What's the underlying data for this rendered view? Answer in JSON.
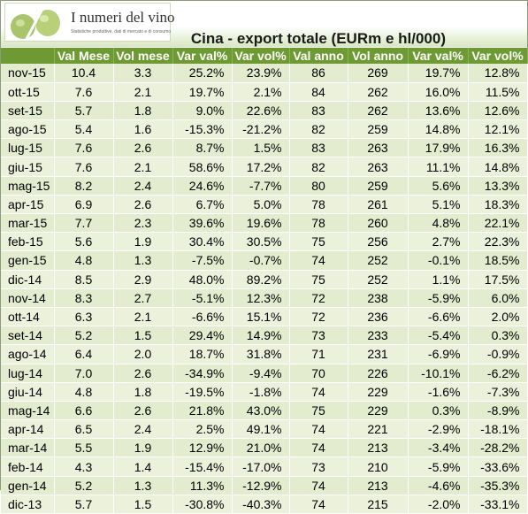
{
  "logo": {
    "title": "I numeri del vino",
    "subtitle": "Statistiche produttive, dati di mercato e di consumo"
  },
  "chart_data": {
    "type": "table",
    "title": "Cina - export totale (EURm e hl/000)",
    "columns": [
      "",
      "Val Mese",
      "Vol mese",
      "Var val%",
      "Var vol%",
      "Val anno",
      "Vol anno",
      "Var val%",
      "Var vol%"
    ],
    "rows": [
      [
        "nov-15",
        "10.4",
        "3.3",
        "25.2%",
        "23.9%",
        "86",
        "269",
        "19.7%",
        "12.8%"
      ],
      [
        "ott-15",
        "7.6",
        "2.1",
        "19.7%",
        "2.1%",
        "84",
        "262",
        "16.0%",
        "11.5%"
      ],
      [
        "set-15",
        "5.7",
        "1.8",
        "9.0%",
        "22.6%",
        "83",
        "262",
        "13.6%",
        "12.6%"
      ],
      [
        "ago-15",
        "5.4",
        "1.6",
        "-15.3%",
        "-21.2%",
        "82",
        "259",
        "14.8%",
        "12.1%"
      ],
      [
        "lug-15",
        "7.6",
        "2.6",
        "8.7%",
        "1.5%",
        "83",
        "263",
        "17.9%",
        "16.3%"
      ],
      [
        "giu-15",
        "7.6",
        "2.1",
        "58.6%",
        "17.2%",
        "82",
        "263",
        "11.1%",
        "14.8%"
      ],
      [
        "mag-15",
        "8.2",
        "2.4",
        "24.6%",
        "-7.7%",
        "80",
        "259",
        "5.6%",
        "13.3%"
      ],
      [
        "apr-15",
        "6.9",
        "2.6",
        "6.7%",
        "5.0%",
        "78",
        "261",
        "5.1%",
        "18.3%"
      ],
      [
        "mar-15",
        "7.7",
        "2.3",
        "39.6%",
        "19.6%",
        "78",
        "260",
        "4.8%",
        "22.1%"
      ],
      [
        "feb-15",
        "5.6",
        "1.9",
        "30.4%",
        "30.5%",
        "75",
        "256",
        "2.7%",
        "22.3%"
      ],
      [
        "gen-15",
        "4.8",
        "1.3",
        "-7.5%",
        "-0.7%",
        "74",
        "252",
        "-0.1%",
        "18.5%"
      ],
      [
        "dic-14",
        "8.5",
        "2.9",
        "48.0%",
        "89.2%",
        "75",
        "252",
        "1.1%",
        "17.5%"
      ],
      [
        "nov-14",
        "8.3",
        "2.7",
        "-5.1%",
        "12.3%",
        "72",
        "238",
        "-5.9%",
        "6.0%"
      ],
      [
        "ott-14",
        "6.3",
        "2.1",
        "-6.6%",
        "15.1%",
        "72",
        "236",
        "-6.6%",
        "2.0%"
      ],
      [
        "set-14",
        "5.2",
        "1.5",
        "29.4%",
        "14.9%",
        "73",
        "233",
        "-5.4%",
        "0.3%"
      ],
      [
        "ago-14",
        "6.4",
        "2.0",
        "18.7%",
        "31.8%",
        "71",
        "231",
        "-6.9%",
        "-0.9%"
      ],
      [
        "lug-14",
        "7.0",
        "2.6",
        "-34.9%",
        "-9.4%",
        "70",
        "226",
        "-10.1%",
        "-6.2%"
      ],
      [
        "giu-14",
        "4.8",
        "1.8",
        "-19.5%",
        "-1.8%",
        "74",
        "229",
        "-1.6%",
        "-7.3%"
      ],
      [
        "mag-14",
        "6.6",
        "2.6",
        "21.8%",
        "43.0%",
        "75",
        "229",
        "0.3%",
        "-8.9%"
      ],
      [
        "apr-14",
        "6.5",
        "2.4",
        "2.5%",
        "49.1%",
        "74",
        "221",
        "-2.9%",
        "-18.1%"
      ],
      [
        "mar-14",
        "5.5",
        "1.9",
        "12.9%",
        "21.0%",
        "74",
        "213",
        "-3.4%",
        "-28.2%"
      ],
      [
        "feb-14",
        "4.3",
        "1.4",
        "-15.4%",
        "-17.0%",
        "73",
        "210",
        "-5.9%",
        "-33.6%"
      ],
      [
        "gen-14",
        "5.2",
        "1.3",
        "11.3%",
        "-12.9%",
        "74",
        "213",
        "-4.6%",
        "-35.3%"
      ],
      [
        "dic-13",
        "5.7",
        "1.5",
        "-30.8%",
        "-40.3%",
        "74",
        "215",
        "-2.0%",
        "-33.1%"
      ]
    ]
  }
}
